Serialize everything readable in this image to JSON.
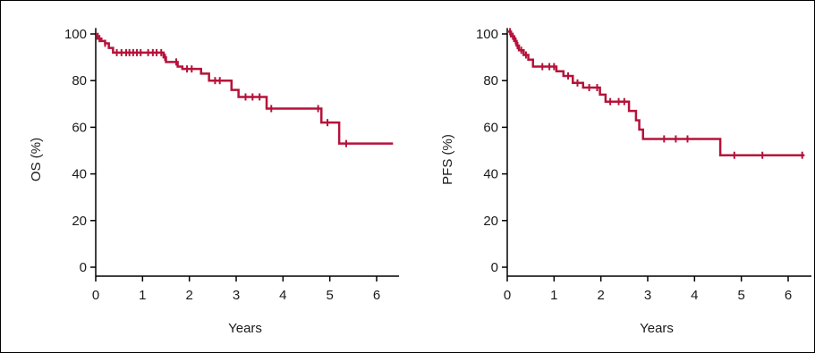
{
  "colors": {
    "curve": "#b5123a",
    "axis": "#000000",
    "text": "#1a1a1a",
    "frame": "#000000"
  },
  "chart_data": [
    {
      "type": "line",
      "subtype": "kaplan-meier-step",
      "title": "",
      "xlabel": "Years",
      "ylabel": "OS (%)",
      "xlim": [
        0,
        6.3
      ],
      "ylim": [
        0,
        100
      ],
      "xticks": [
        0,
        1,
        2,
        3,
        4,
        5,
        6
      ],
      "yticks": [
        0,
        20,
        40,
        60,
        80,
        100
      ],
      "grid": false,
      "series": [
        {
          "steps": [
            [
              0,
              100
            ],
            [
              0.04,
              98
            ],
            [
              0.12,
              97
            ],
            [
              0.2,
              96
            ],
            [
              0.28,
              94
            ],
            [
              0.37,
              92
            ],
            [
              1.45,
              90
            ],
            [
              1.5,
              88
            ],
            [
              1.75,
              86
            ],
            [
              1.85,
              85
            ],
            [
              2.25,
              83
            ],
            [
              2.42,
              80
            ],
            [
              2.75,
              80
            ],
            [
              2.9,
              76
            ],
            [
              3.05,
              73
            ],
            [
              3.65,
              68
            ],
            [
              4.82,
              62
            ],
            [
              5.2,
              53
            ],
            [
              6.35,
              53
            ]
          ],
          "censored": [
            [
              0.08,
              98
            ],
            [
              0.2,
              96
            ],
            [
              0.45,
              92
            ],
            [
              0.55,
              92
            ],
            [
              0.65,
              92
            ],
            [
              0.72,
              92
            ],
            [
              0.8,
              92
            ],
            [
              0.88,
              92
            ],
            [
              0.96,
              92
            ],
            [
              1.12,
              92
            ],
            [
              1.22,
              92
            ],
            [
              1.3,
              92
            ],
            [
              1.4,
              92
            ],
            [
              1.48,
              90
            ],
            [
              1.72,
              88
            ],
            [
              1.95,
              85
            ],
            [
              2.05,
              85
            ],
            [
              2.55,
              80
            ],
            [
              2.65,
              80
            ],
            [
              3.2,
              73
            ],
            [
              3.35,
              73
            ],
            [
              3.5,
              73
            ],
            [
              3.75,
              68
            ],
            [
              4.75,
              68
            ],
            [
              4.95,
              62
            ],
            [
              5.35,
              53
            ]
          ]
        }
      ]
    },
    {
      "type": "line",
      "subtype": "kaplan-meier-step",
      "title": "",
      "xlabel": "Years",
      "ylabel": "PFS (%)",
      "xlim": [
        0,
        6.3
      ],
      "ylim": [
        0,
        100
      ],
      "xticks": [
        0,
        1,
        2,
        3,
        4,
        5,
        6
      ],
      "yticks": [
        0,
        20,
        40,
        60,
        80,
        100
      ],
      "grid": false,
      "series": [
        {
          "steps": [
            [
              0,
              101
            ],
            [
              0.08,
              99
            ],
            [
              0.15,
              97
            ],
            [
              0.2,
              95
            ],
            [
              0.25,
              93
            ],
            [
              0.35,
              91
            ],
            [
              0.45,
              89
            ],
            [
              0.55,
              86
            ],
            [
              1.05,
              84
            ],
            [
              1.2,
              82
            ],
            [
              1.4,
              79
            ],
            [
              1.62,
              77
            ],
            [
              1.98,
              74
            ],
            [
              2.1,
              71
            ],
            [
              2.6,
              67
            ],
            [
              2.75,
              63
            ],
            [
              2.82,
              59
            ],
            [
              2.9,
              55
            ],
            [
              4.55,
              48
            ],
            [
              6.35,
              48
            ]
          ],
          "censored": [
            [
              0.06,
              101
            ],
            [
              0.12,
              99
            ],
            [
              0.18,
              97
            ],
            [
              0.22,
              95
            ],
            [
              0.3,
              93
            ],
            [
              0.4,
              91
            ],
            [
              0.75,
              86
            ],
            [
              0.9,
              86
            ],
            [
              1.0,
              86
            ],
            [
              1.3,
              82
            ],
            [
              1.5,
              79
            ],
            [
              1.75,
              77
            ],
            [
              1.92,
              77
            ],
            [
              2.2,
              71
            ],
            [
              2.38,
              71
            ],
            [
              2.5,
              71
            ],
            [
              3.35,
              55
            ],
            [
              3.6,
              55
            ],
            [
              3.85,
              55
            ],
            [
              4.85,
              48
            ],
            [
              5.45,
              48
            ],
            [
              6.3,
              48
            ]
          ]
        }
      ]
    }
  ]
}
